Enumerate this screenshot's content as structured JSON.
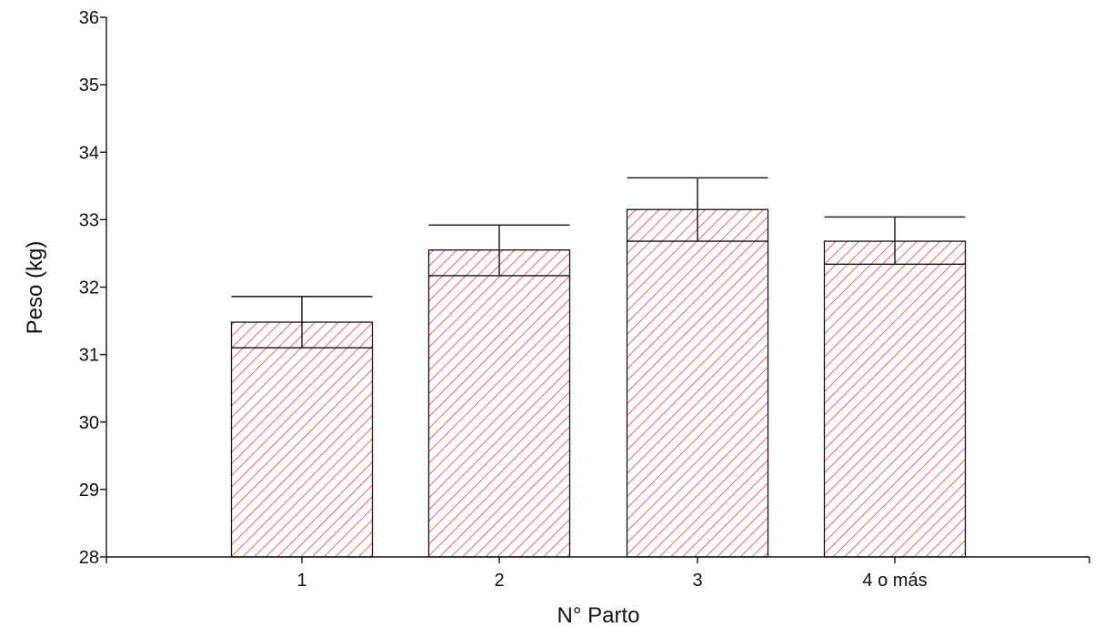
{
  "chart_data": {
    "type": "bar",
    "title": "",
    "xlabel": "N° Parto",
    "ylabel": "Peso (kg)",
    "categories": [
      "1",
      "2",
      "3",
      "4 o más"
    ],
    "values": [
      31.48,
      32.55,
      33.15,
      32.68
    ],
    "error_low": [
      31.1,
      32.17,
      32.68,
      32.34
    ],
    "error_high": [
      31.86,
      32.92,
      33.62,
      33.04
    ],
    "ylim": [
      28,
      36
    ],
    "yticks": [
      28,
      29,
      30,
      31,
      32,
      33,
      34,
      35,
      36
    ],
    "grid": false,
    "legend": "none",
    "bar_hatch_color": "#e8404a",
    "bar_fill_color": "#ffffff",
    "bar_edge_color": "#111111",
    "axis_color": "#111111"
  }
}
